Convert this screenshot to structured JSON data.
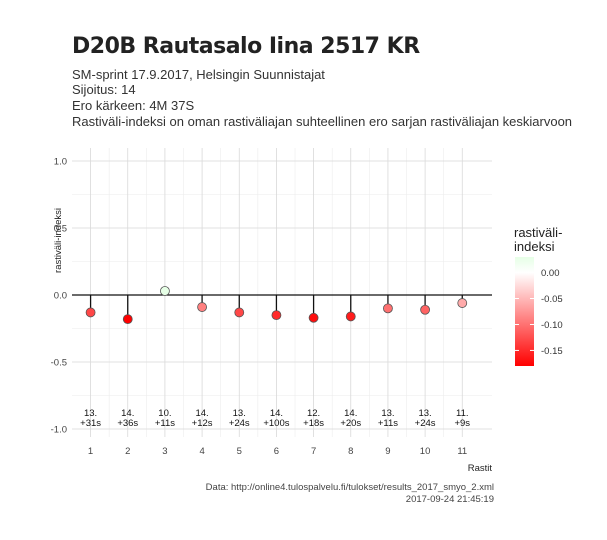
{
  "header": {
    "title": "D20B Rautasalo Iina 2517 KR",
    "subtitle_lines": [
      "SM-sprint 17.9.2017, Helsingin Suunnistajat",
      "Sijoitus: 14",
      "Ero kärkeen: 4M 37S",
      "Rastiväli-indeksi on oman rastiväliajan suhteellinen ero sarjan rastiväliajan keskiarvoon"
    ]
  },
  "caption": {
    "source": "Data: http://online4.tulospalvelu.fi/tulokset/results_2017_smyo_2.xml",
    "timestamp": "2017-09-24 21:45:19"
  },
  "chart_data": {
    "type": "scatter",
    "xlabel": "Rastit",
    "ylabel": "rastiväli-indeksi",
    "x": [
      1,
      2,
      3,
      4,
      5,
      6,
      7,
      8,
      9,
      10,
      11
    ],
    "y": [
      -0.13,
      -0.18,
      0.03,
      -0.09,
      -0.13,
      -0.15,
      -0.17,
      -0.16,
      -0.1,
      -0.11,
      -0.06
    ],
    "annotations": [
      [
        "13.",
        "+31s"
      ],
      [
        "14.",
        "+36s"
      ],
      [
        "10.",
        "+11s"
      ],
      [
        "14.",
        "+12s"
      ],
      [
        "13.",
        "+24s"
      ],
      [
        "14.",
        "+100s"
      ],
      [
        "12.",
        "+18s"
      ],
      [
        "14.",
        "+20s"
      ],
      [
        "13.",
        "+11s"
      ],
      [
        "13.",
        "+24s"
      ],
      [
        "11.",
        "+9s"
      ]
    ],
    "ylim": [
      -1.0,
      1.0
    ],
    "yticks": [
      -1.0,
      -0.5,
      0.0,
      0.5,
      1.0
    ],
    "ytick_labels": [
      "-1.0",
      "-0.5",
      "0.0",
      "0.5",
      "1.0"
    ],
    "xticks": [
      "1",
      "2",
      "3",
      "4",
      "5",
      "6",
      "7",
      "8",
      "9",
      "10",
      "11"
    ],
    "grid": true,
    "legend": {
      "title_lines": [
        "rastiväli-",
        "indeksi"
      ],
      "placement": "right",
      "range": [
        -0.18,
        0.03
      ],
      "ticks": [
        0.0,
        -0.05,
        -0.1,
        -0.15
      ],
      "tick_labels": [
        "0.00",
        "-0.05",
        "-0.10",
        "-0.15"
      ]
    },
    "colors": {
      "low": "#ff0000",
      "mid": "#ffffff",
      "high": "#e6ffe6"
    }
  }
}
